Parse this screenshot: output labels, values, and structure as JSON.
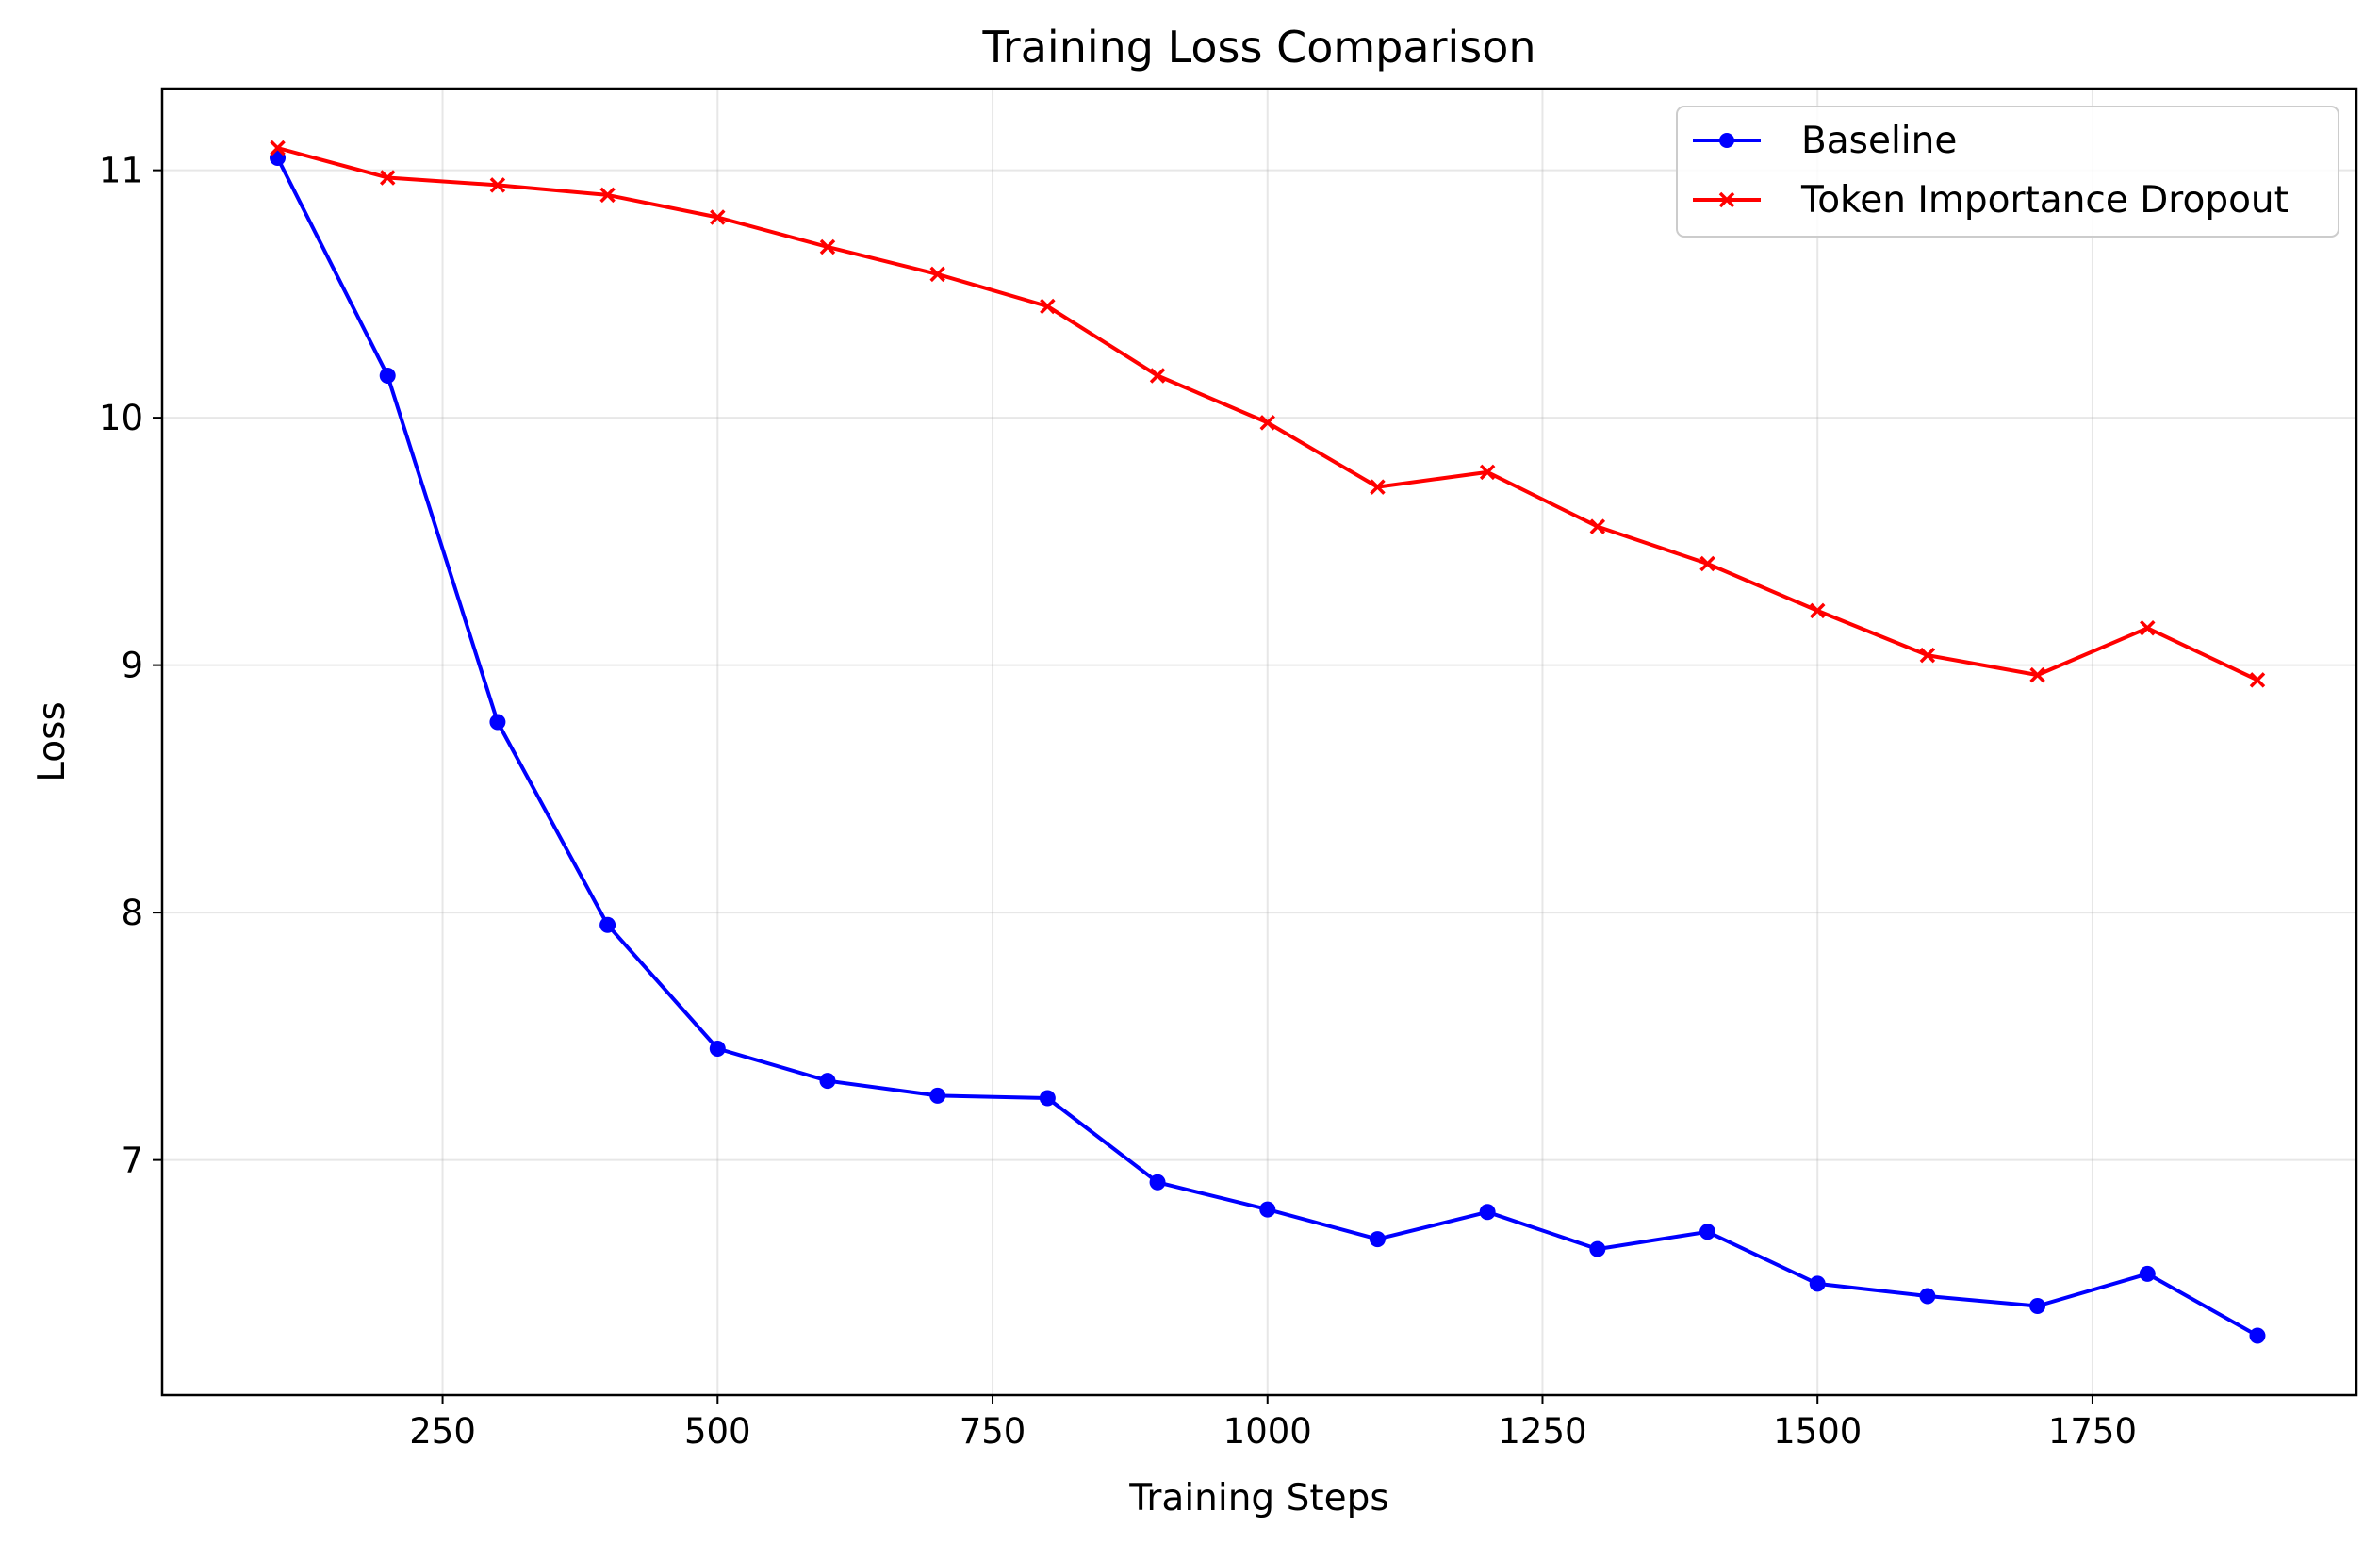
{
  "chart_data": {
    "type": "line",
    "title": "Training Loss Comparison",
    "xlabel": "Training Steps",
    "ylabel": "Loss",
    "xlim": [
      -5,
      1990
    ],
    "ylim": [
      6.05,
      11.33
    ],
    "xticks": [
      250,
      500,
      750,
      1000,
      1250,
      1500,
      1750
    ],
    "yticks": [
      7,
      8,
      9,
      10,
      11
    ],
    "grid": true,
    "legend_position": "top-right",
    "x": [
      100,
      200,
      300,
      400,
      500,
      600,
      700,
      800,
      900,
      1000,
      1100,
      1200,
      1300,
      1400,
      1500,
      1600,
      1700,
      1800,
      1900
    ],
    "series": [
      {
        "name": "Baseline",
        "color": "#0000ff",
        "marker": "circle",
        "values": [
          11.05,
          10.17,
          8.77,
          7.95,
          7.45,
          7.32,
          7.26,
          7.25,
          6.91,
          6.8,
          6.68,
          6.79,
          6.64,
          6.71,
          6.5,
          6.45,
          6.41,
          6.54,
          6.29
        ]
      },
      {
        "name": "Token Importance Dropout",
        "color": "#ff0000",
        "marker": "x",
        "values": [
          11.09,
          10.97,
          10.94,
          10.9,
          10.81,
          10.69,
          10.58,
          10.45,
          10.17,
          9.98,
          9.72,
          9.78,
          9.56,
          9.41,
          9.22,
          9.04,
          8.96,
          9.15,
          8.94
        ]
      }
    ]
  }
}
